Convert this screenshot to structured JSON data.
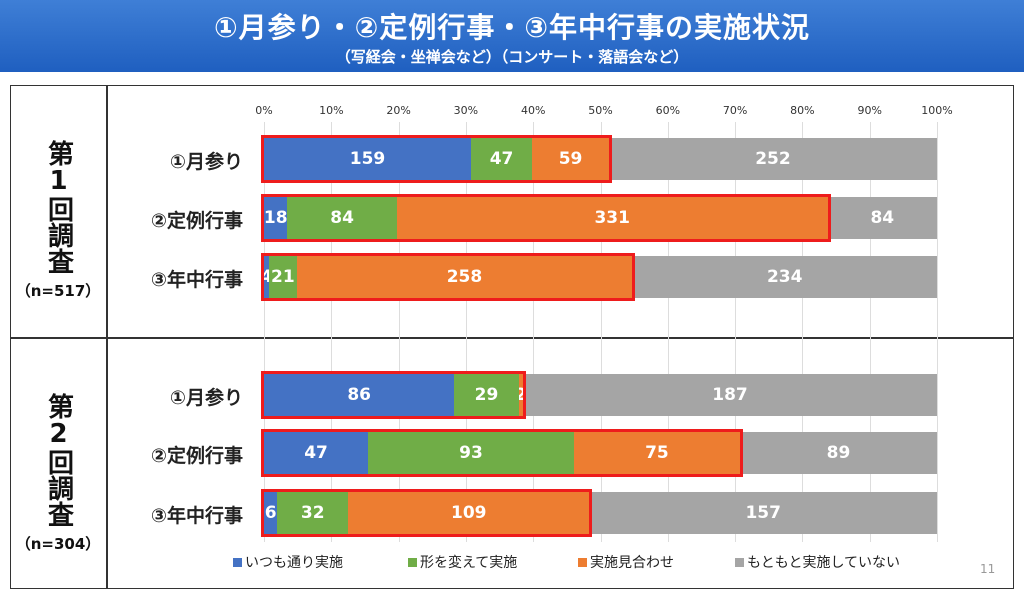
{
  "title": "①月参り・②定例行事・③年中行事の実施状況",
  "subtitle": "（写経会・坐禅会など）（コンサート・落語会など）",
  "page_number": "11",
  "colors": {
    "header": "#2b6bcb",
    "highlight": "#ee1c1c"
  },
  "chart_data": {
    "type": "bar",
    "orientation": "horizontal-stacked-100",
    "xticks": [
      "0%",
      "10%",
      "20%",
      "30%",
      "40%",
      "50%",
      "60%",
      "70%",
      "80%",
      "90%",
      "100%"
    ],
    "xlim": [
      0,
      100
    ],
    "legend_position": "bottom",
    "series": [
      {
        "name": "いつも通り実施",
        "color": "#4472c4"
      },
      {
        "name": "形を変えて実施",
        "color": "#70ad47"
      },
      {
        "name": "実施見合わせ",
        "color": "#ed7d31"
      },
      {
        "name": "もともと実施していない",
        "color": "#a5a5a5"
      }
    ],
    "surveys": [
      {
        "label": "第1回調査",
        "n": "（n=517）",
        "rows": [
          {
            "category": "①月参り",
            "values": [
              159,
              47,
              59,
              252
            ]
          },
          {
            "category": "②定例行事",
            "values": [
              18,
              84,
              331,
              84
            ]
          },
          {
            "category": "③年中行事",
            "values": [
              4,
              21,
              258,
              234
            ]
          }
        ]
      },
      {
        "label": "第2回調査",
        "n": "（n=304）",
        "rows": [
          {
            "category": "①月参り",
            "values": [
              86,
              29,
              2,
              187
            ]
          },
          {
            "category": "②定例行事",
            "values": [
              47,
              93,
              75,
              89
            ]
          },
          {
            "category": "③年中行事",
            "values": [
              6,
              32,
              109,
              157
            ]
          }
        ]
      }
    ]
  }
}
